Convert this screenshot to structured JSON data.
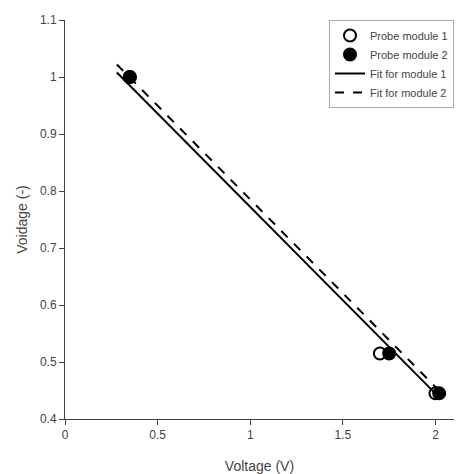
{
  "chart_data": {
    "type": "scatter",
    "xlabel": "Voltage (V)",
    "ylabel": "Voidage (-)",
    "xlim": [
      0,
      2.1
    ],
    "ylim": [
      0.4,
      1.1
    ],
    "xticks": [
      0,
      0.5,
      1,
      1.5,
      2
    ],
    "yticks": [
      0.4,
      0.5,
      0.6,
      0.7,
      0.8,
      0.9,
      1,
      1.1
    ],
    "grid": false,
    "legend": "upper right",
    "series": [
      {
        "name": "Probe module 1",
        "type": "scatter",
        "marker": "circle-open",
        "color": "#000000",
        "x": [
          0.35,
          1.7,
          2.0
        ],
        "values": [
          1.0,
          0.515,
          0.445
        ]
      },
      {
        "name": "Probe module 2",
        "type": "scatter",
        "marker": "circle",
        "color": "#000000",
        "x": [
          0.35,
          1.75,
          2.02
        ],
        "values": [
          1.0,
          0.515,
          0.445
        ]
      },
      {
        "name": "Fit for module 1",
        "type": "line",
        "line_style": "solid",
        "color": "#000000",
        "x": [
          0.28,
          2.02
        ],
        "values": [
          1.008,
          0.438
        ]
      },
      {
        "name": "Fit for module 2",
        "type": "line",
        "line_style": "dash",
        "color": "#000000",
        "x": [
          0.28,
          2.04
        ],
        "values": [
          1.022,
          0.443
        ]
      }
    ]
  }
}
